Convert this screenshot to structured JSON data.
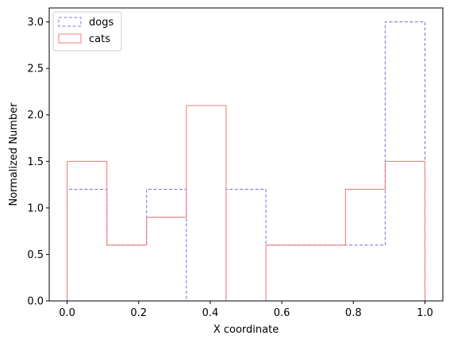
{
  "chart_data": {
    "type": "histogram",
    "xlabel": "X coordinate",
    "ylabel": "Normalized Number",
    "xlim": [
      -0.05,
      1.05
    ],
    "ylim": [
      0,
      3.15
    ],
    "x_ticks": [
      0.0,
      0.2,
      0.4,
      0.6,
      0.8,
      1.0
    ],
    "x_tick_labels": [
      "0.0",
      "0.2",
      "0.4",
      "0.6",
      "0.8",
      "1.0"
    ],
    "y_ticks": [
      0.0,
      0.5,
      1.0,
      1.5,
      2.0,
      2.5,
      3.0
    ],
    "y_tick_labels": [
      "0.0",
      "0.5",
      "1.0",
      "1.5",
      "2.0",
      "2.5",
      "3.0"
    ],
    "bin_edges": [
      0,
      0.1111,
      0.2222,
      0.3333,
      0.4444,
      0.5556,
      0.6667,
      0.7778,
      0.8889,
      1.0
    ],
    "grid": false,
    "legend_position": "top-left",
    "series": [
      {
        "name": "dogs",
        "color": "#7b7bef",
        "linestyle": "dashed",
        "values": [
          1.2,
          0.6,
          1.2,
          0.0,
          1.2,
          0.6,
          0.6,
          0.6,
          3.0
        ]
      },
      {
        "name": "cats",
        "color": "#f27f7f",
        "linestyle": "solid",
        "values": [
          1.5,
          0.6,
          0.9,
          2.1,
          0.0,
          0.6,
          0.6,
          1.2,
          1.5
        ]
      }
    ]
  }
}
